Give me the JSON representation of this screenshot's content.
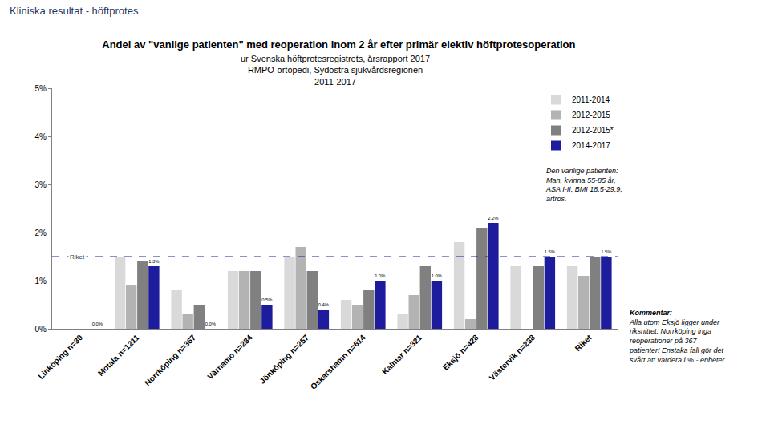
{
  "header": "Kliniska resultat - höftprotes",
  "chart_data": {
    "type": "bar",
    "title": "Andel av \"vanlige patienten\" med reoperation inom 2 år efter primär elektiv höftprotesoperation",
    "subtitle": [
      "ur Svenska höftprotesregistrets, årsrapport 2017",
      "RMPO-ortopedi, Sydöstra sjukvårdsregionen",
      "2011-2017"
    ],
    "categories": [
      "Linköping n=30",
      "Motala n=1211",
      "Norrköping n=367",
      "Värnamo n=234",
      "Jönköping n=257",
      "Oskarshamn n=614",
      "Kalmar n=321",
      "Eksjö n=428",
      "Västervik n=238",
      "Riket"
    ],
    "series": [
      {
        "name": "2011-2014",
        "color": "#d9d9d9",
        "values": [
          null,
          1.5,
          0.8,
          1.2,
          1.5,
          0.6,
          0.3,
          1.8,
          1.3,
          1.3
        ]
      },
      {
        "name": "2012-2015",
        "color": "#b3b3b3",
        "values": [
          null,
          0.9,
          0.3,
          1.2,
          1.7,
          0.5,
          0.7,
          0.2,
          null,
          1.1
        ]
      },
      {
        "name": "2012-2015*",
        "color": "#808080",
        "values": [
          null,
          1.4,
          0.5,
          1.2,
          1.2,
          0.8,
          1.3,
          2.1,
          1.3,
          1.5
        ]
      },
      {
        "name": "2014-2017",
        "color": "#1c1c9c",
        "values": [
          0.0,
          1.3,
          0.0,
          0.5,
          0.4,
          1.0,
          1.0,
          2.2,
          1.5,
          1.5
        ],
        "data_labels": true,
        "value_labels": [
          "0.0%",
          "1.3%",
          "0.0%",
          "0.5%",
          "0.4%",
          "1.0%",
          "1.0%",
          "2.2%",
          "1.5%",
          "1.5%"
        ]
      }
    ],
    "ylim": [
      0,
      5
    ],
    "yticks": [
      {
        "value": 0,
        "label": "0%"
      },
      {
        "value": 1,
        "label": "1%"
      },
      {
        "value": 2,
        "label": "2%"
      },
      {
        "value": 3,
        "label": "3%"
      },
      {
        "value": 4,
        "label": "4%"
      },
      {
        "value": 5,
        "label": "5%"
      }
    ],
    "grid": false,
    "legend": "top-right",
    "reference_lines": [
      {
        "value": 1.5,
        "label": "Riket",
        "color": "#1c1c9c",
        "line_style": "dashed"
      }
    ],
    "annotations": [
      {
        "lines": [
          "Den vanlige patienten:",
          "Man, kvinna 55-85 år,",
          "ASA I-II, BMI 18,5-29,9,",
          "artros."
        ]
      },
      {
        "heading": "Kommentar:",
        "lines": [
          "Alla utom Eksjö ligger under",
          "riksnittet. Norrköping inga",
          "reoperationer på 367",
          "patienter! Enstaka fall gör det",
          "svårt att värdera i % - enheter."
        ]
      }
    ]
  }
}
